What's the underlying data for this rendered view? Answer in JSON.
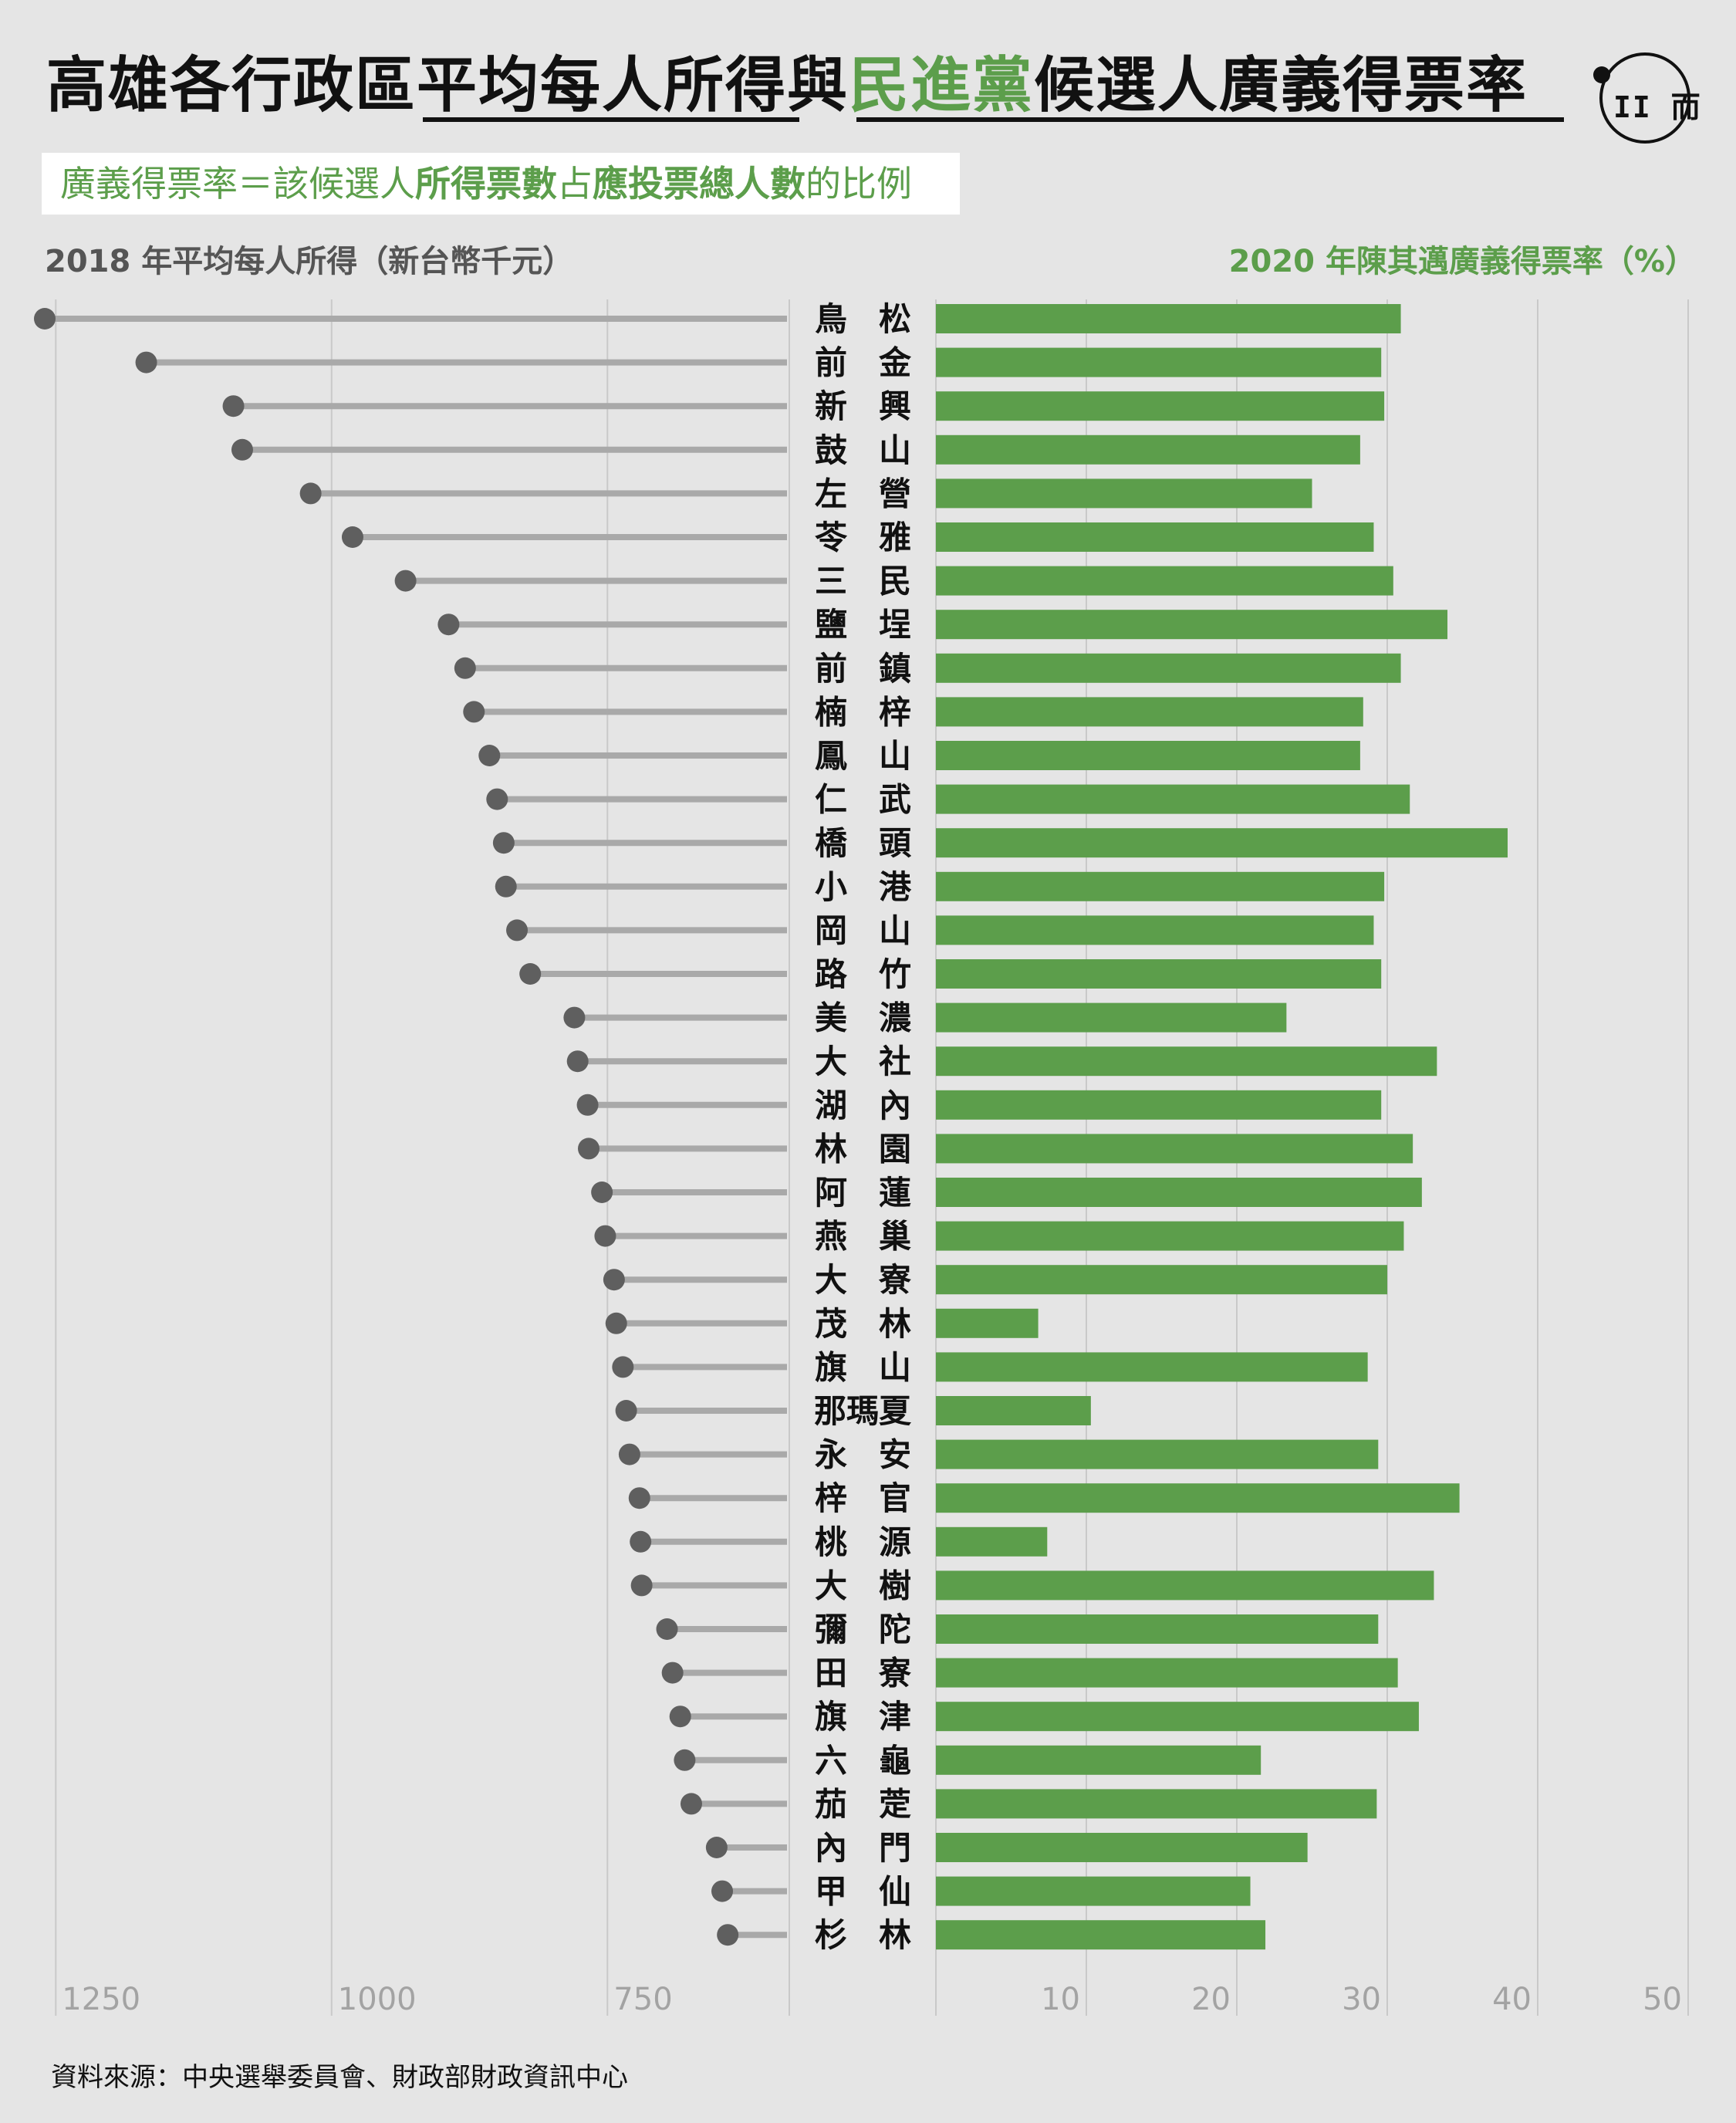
{
  "title": {
    "part1": "高雄各行政區",
    "part2": "平均每人所得與",
    "part3": "民進黨",
    "part4": "候選人廣義得票率"
  },
  "definition": {
    "t1": "廣義得票率＝該候選人",
    "t2": "所得票數",
    "t3": "占",
    "t4": "應投票總人數",
    "t5": "的比例"
  },
  "logo": {
    "icon": "端-logo",
    "mark": "II 而"
  },
  "left_axis_title": "2018 年平均每人所得（新台幣千元）",
  "right_axis_title": "2020 年陳其邁廣義得票率（%）",
  "source": "資料來源：中央選舉委員會、財政部財政資訊中心",
  "colors": {
    "green": "#5c9e4b",
    "lollipop_line": "#a9a9a9",
    "lollipop_dot": "#5f5f5f",
    "grid": "#c9c9c9"
  },
  "chart_data": [
    {
      "type": "lollipop",
      "title": "2018 年平均每人所得（新台幣千元）",
      "axis_direction": "reversed",
      "xlim": [
        1270,
        460
      ],
      "ticks": [
        1250,
        1000,
        750
      ],
      "grid": true,
      "categories": [
        "鳥松",
        "前金",
        "新興",
        "鼓山",
        "左營",
        "苓雅",
        "三民",
        "鹽埕",
        "前鎮",
        "楠梓",
        "鳳山",
        "仁武",
        "橋頭",
        "小港",
        "岡山",
        "路竹",
        "美濃",
        "大社",
        "湖內",
        "林園",
        "阿蓮",
        "燕巢",
        "大寮",
        "茂林",
        "旗山",
        "那瑪夏",
        "永安",
        "梓官",
        "桃源",
        "大樹",
        "彌陀",
        "田寮",
        "旗津",
        "六龜",
        "茄萣",
        "內門",
        "甲仙",
        "杉林"
      ],
      "values": [
        1260,
        1168,
        1089,
        1081,
        1019,
        981,
        933,
        894,
        879,
        871,
        857,
        850,
        844,
        842,
        832,
        820,
        780,
        777,
        768,
        767,
        755,
        752,
        744,
        742,
        736,
        733,
        730,
        721,
        720,
        719,
        696,
        691,
        684,
        680,
        674,
        651,
        646,
        641
      ]
    },
    {
      "type": "bar",
      "title": "2020 年陳其邁廣義得票率（%）",
      "xlim": [
        0,
        50
      ],
      "ticks": [
        10,
        20,
        30,
        40,
        50
      ],
      "grid": true,
      "categories": [
        "鳥松",
        "前金",
        "新興",
        "鼓山",
        "左營",
        "苓雅",
        "三民",
        "鹽埕",
        "前鎮",
        "楠梓",
        "鳳山",
        "仁武",
        "橋頭",
        "小港",
        "岡山",
        "路竹",
        "美濃",
        "大社",
        "湖內",
        "林園",
        "阿蓮",
        "燕巢",
        "大寮",
        "茂林",
        "旗山",
        "那瑪夏",
        "永安",
        "梓官",
        "桃源",
        "大樹",
        "彌陀",
        "田寮",
        "旗津",
        "六龜",
        "茄萣",
        "內門",
        "甲仙",
        "杉林"
      ],
      "values": [
        30.9,
        29.6,
        29.8,
        28.2,
        25.0,
        29.1,
        30.4,
        34.0,
        30.9,
        28.4,
        28.2,
        31.5,
        38.0,
        29.8,
        29.1,
        29.6,
        23.3,
        33.3,
        29.6,
        31.7,
        32.3,
        31.1,
        30.0,
        6.8,
        28.7,
        10.3,
        29.4,
        34.8,
        7.4,
        33.1,
        29.4,
        30.7,
        32.1,
        21.6,
        29.3,
        24.7,
        20.9,
        21.9
      ]
    }
  ]
}
